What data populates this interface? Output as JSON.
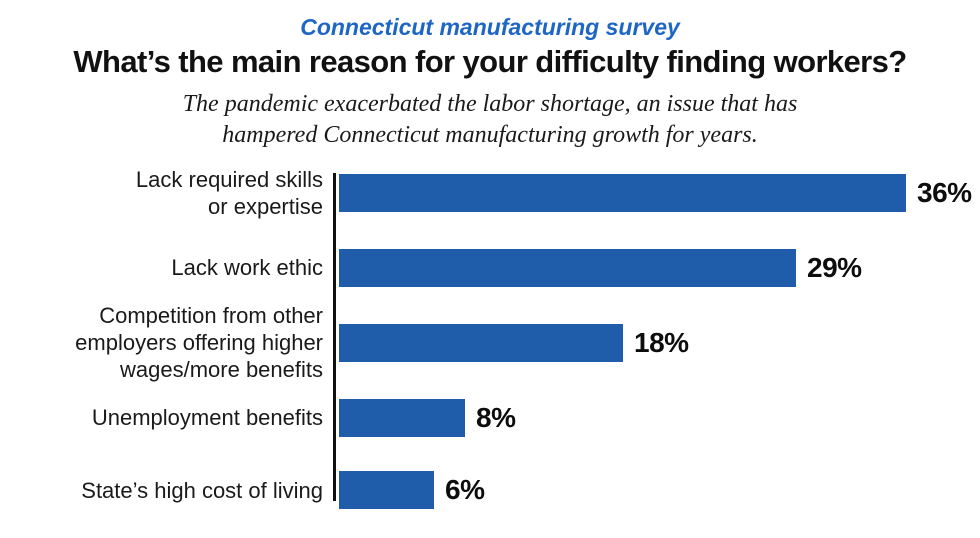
{
  "kicker": "Connecticut manufacturing survey",
  "title": "What’s the main reason for your difficulty finding workers?",
  "subtitle": "The pandemic exacerbated the labor shortage, an issue that has\nhampered Connecticut manufacturing growth for years.",
  "colors": {
    "kicker_blue": "#1E66C4",
    "bar_blue": "#1F5CA9",
    "axis_black": "#111111"
  },
  "chart_data": {
    "type": "bar",
    "orientation": "horizontal",
    "title": "What’s the main reason for your difficulty finding workers?",
    "categories": [
      "Lack required skills\nor expertise",
      "Lack work ethic",
      "Competition from other\nemployers offering higher\nwages/more benefits",
      "Unemployment benefits",
      "State’s high cost of living"
    ],
    "values": [
      36,
      29,
      18,
      8,
      6
    ],
    "value_labels": [
      "36%",
      "29%",
      "18%",
      "8%",
      "6%"
    ],
    "xlim": [
      0,
      40
    ],
    "grid": false,
    "legend": false,
    "bar_color": "#1F5CA9"
  }
}
